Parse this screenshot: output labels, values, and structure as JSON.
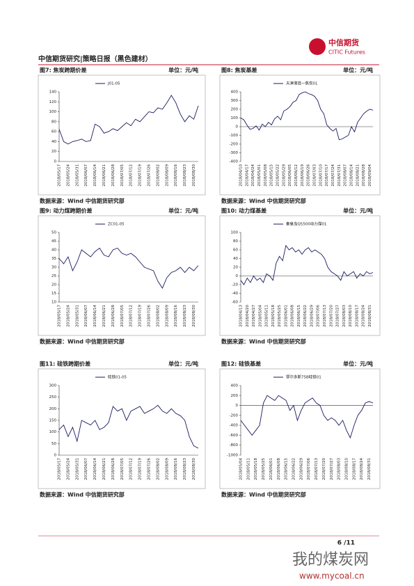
{
  "header": {
    "logo_name": "中信期货",
    "logo_en": "CITIC Futures",
    "title": "中信期货研究|策略日报（黑色建材）"
  },
  "footer": {
    "page": "6 /11",
    "watermark": "我的煤炭网",
    "watermark_url": "www.mycoal.cn"
  },
  "chart_data": [
    {
      "type": "line",
      "title": "图7: 焦炭跨期价差",
      "unit": "单位：元/吨",
      "source": "数据来源：Wind 中信期货研究部",
      "categories": [
        "2018/05/17",
        null,
        "2018/05/24",
        null,
        "2018/05/31",
        null,
        "2018/06/07",
        null,
        "2018/06/14",
        null,
        "2018/06/21",
        null,
        "2018/06/28",
        null,
        "2018/07/05",
        null,
        "2018/07/12",
        null,
        "2018/07/19",
        null,
        "2018/07/26",
        null,
        "2018/08/02",
        null,
        "2018/08/09",
        null,
        "2018/08/16",
        null,
        "2018/08/23",
        null,
        "2018/08/30",
        null
      ],
      "series": [
        {
          "name": "J01-05",
          "color": "#1a1a5e",
          "values": [
            65,
            40,
            35,
            40,
            42,
            45,
            40,
            42,
            75,
            70,
            57,
            60,
            66,
            62,
            70,
            78,
            72,
            85,
            80,
            90,
            100,
            98,
            108,
            105,
            118,
            133,
            118,
            95,
            80,
            92,
            85,
            112
          ]
        }
      ],
      "ylim": [
        0,
        140
      ],
      "yticks": [
        0,
        20,
        40,
        60,
        80,
        100,
        120,
        140
      ]
    },
    {
      "type": "line",
      "title": "图8: 焦炭基差",
      "unit": "单位：元/吨",
      "source": "数据来源：Wind 中信期货研究部",
      "categories": [
        "2018/04/10",
        null,
        "2018/04/17",
        null,
        "2018/04/24",
        null,
        "2018/05/01",
        null,
        "2018/05/08",
        null,
        "2018/05/15",
        null,
        "2018/05/22",
        null,
        "2018/05/29",
        null,
        "2018/06/05",
        null,
        "2018/06/12",
        null,
        "2018/06/19",
        null,
        "2018/06/26",
        null,
        "2018/07/03",
        null,
        "2018/07/10",
        null,
        "2018/07/17",
        null,
        "2018/07/24",
        null,
        "2018/07/31",
        null,
        "2018/08/07",
        null,
        "2018/08/14",
        null,
        "2018/08/21",
        null,
        "2018/08/28",
        null,
        "2018/09/04",
        null
      ],
      "series": [
        {
          "name": "天津港准一焦炭01",
          "color": "#1a1a5e",
          "values": [
            100,
            80,
            20,
            -30,
            -20,
            10,
            -40,
            30,
            0,
            50,
            20,
            90,
            120,
            80,
            180,
            200,
            230,
            280,
            300,
            370,
            390,
            400,
            380,
            370,
            350,
            300,
            200,
            150,
            20,
            -20,
            -50,
            -20,
            -150,
            -140,
            -120,
            -100,
            0,
            -60,
            50,
            100,
            150,
            180,
            200,
            190
          ]
        }
      ],
      "ylim": [
        -400,
        400
      ],
      "yticks": [
        -400,
        -300,
        -200,
        -100,
        0,
        100,
        200,
        300,
        400
      ]
    },
    {
      "type": "line",
      "title": "图9: 动力煤跨期价差",
      "unit": "单位：元/吨",
      "source": "数据来源：Wind 中信期货研究部",
      "categories": [
        "2018/05/17",
        null,
        "2018/05/24",
        null,
        "2018/05/31",
        null,
        "2018/06/07",
        null,
        "2018/06/14",
        null,
        "2018/06/21",
        null,
        "2018/06/28",
        null,
        "2018/07/05",
        null,
        "2018/07/12",
        null,
        "2018/07/19",
        null,
        "2018/07/26",
        null,
        "2018/08/02",
        null,
        "2018/08/09",
        null,
        "2018/08/16",
        null,
        "2018/08/23",
        null,
        "2018/08/30",
        null
      ],
      "series": [
        {
          "name": "ZC01-05",
          "color": "#1a1a5e",
          "values": [
            35,
            32,
            36,
            28,
            33,
            40,
            38,
            36,
            39,
            41,
            37,
            36,
            40,
            41,
            38,
            37,
            38,
            36,
            33,
            30,
            29,
            28,
            22,
            18,
            24,
            27,
            28,
            30,
            27,
            30,
            28,
            31
          ]
        }
      ],
      "ylim": [
        10,
        50
      ],
      "yticks": [
        10,
        15,
        20,
        25,
        30,
        35,
        40,
        45,
        50
      ]
    },
    {
      "type": "line",
      "title": "图10: 动力煤基差",
      "unit": "单位：元/吨",
      "source": "数据来源：Wind 中信期货研究部",
      "categories": [
        "2018/04/13",
        null,
        "2018/04/20",
        null,
        "2018/04/27",
        null,
        "2018/05/04",
        null,
        "2018/05/11",
        null,
        "2018/05/18",
        null,
        "2018/05/25",
        null,
        "2018/06/01",
        null,
        "2018/06/08",
        null,
        "2018/06/15",
        null,
        "2018/06/22",
        null,
        "2018/06/29",
        null,
        "2018/07/06",
        null,
        "2018/07/13",
        null,
        "2018/07/20",
        null,
        "2018/07/27",
        null,
        "2018/08/03",
        null,
        "2018/08/10",
        null,
        "2018/08/17",
        null,
        "2018/08/24",
        null,
        "2018/08/31",
        null
      ],
      "series": [
        {
          "name": "秦皇岛Q5500动力煤01",
          "color": "#1a1a5e",
          "values": [
            -10,
            -20,
            -5,
            -15,
            0,
            -10,
            -5,
            -15,
            5,
            0,
            -10,
            30,
            45,
            35,
            70,
            60,
            65,
            55,
            60,
            50,
            60,
            65,
            55,
            60,
            55,
            50,
            40,
            20,
            10,
            5,
            0,
            -10,
            10,
            0,
            5,
            10,
            -5,
            5,
            0,
            10,
            5,
            8
          ]
        }
      ],
      "ylim": [
        -60,
        100
      ],
      "yticks": [
        -60,
        -40,
        -20,
        0,
        20,
        40,
        60,
        80,
        100
      ]
    },
    {
      "type": "line",
      "title": "图11: 硅铁跨期价差",
      "unit": "单位：元/吨",
      "source": "数据来源：Wind 中信期货研究部",
      "categories": [
        "2018/05/17",
        null,
        "2018/05/24",
        null,
        "2018/05/31",
        null,
        "2018/06/07",
        null,
        "2018/06/14",
        null,
        "2018/06/21",
        null,
        "2018/06/28",
        null,
        "2018/07/05",
        null,
        "2018/07/12",
        null,
        "2018/07/19",
        null,
        "2018/07/26",
        null,
        "2018/08/02",
        null,
        "2018/08/09",
        null,
        "2018/08/16",
        null,
        "2018/08/23",
        null,
        "2018/08/30",
        null
      ],
      "series": [
        {
          "name": "硅铁01-05",
          "color": "#1a1a5e",
          "values": [
            110,
            130,
            80,
            120,
            60,
            150,
            140,
            130,
            150,
            110,
            120,
            140,
            210,
            190,
            200,
            150,
            190,
            200,
            210,
            180,
            190,
            200,
            215,
            190,
            180,
            200,
            180,
            170,
            150,
            80,
            40,
            30
          ]
        }
      ],
      "ylim": [
        0,
        300
      ],
      "yticks": [
        0,
        50,
        100,
        150,
        200,
        250,
        300
      ]
    },
    {
      "type": "line",
      "title": "图12: 硅铁基差",
      "unit": "单位：元/吨",
      "source": "数据来源：Wind 中信期货研究部",
      "categories": [
        "2018/05/04",
        null,
        "2018/05/11",
        null,
        "2018/05/18",
        null,
        "2018/05/25",
        null,
        "2018/06/01",
        null,
        "2018/06/08",
        null,
        "2018/06/15",
        null,
        "2018/06/22",
        null,
        "2018/06/29",
        null,
        "2018/07/06",
        null,
        "2018/07/13",
        null,
        "2018/07/20",
        null,
        "2018/07/27",
        null,
        "2018/08/03",
        null,
        "2018/08/10",
        null,
        "2018/08/17",
        null,
        "2018/08/24",
        null,
        "2018/08/31",
        null
      ],
      "series": [
        {
          "name": "鄂尔多斯75B硅铁01",
          "color": "#1a1a5e",
          "values": [
            -300,
            -400,
            -500,
            -600,
            -500,
            -400,
            50,
            200,
            150,
            100,
            200,
            150,
            100,
            -100,
            0,
            -300,
            -100,
            50,
            100,
            150,
            50,
            0,
            -200,
            -300,
            -250,
            -300,
            -400,
            -300,
            -500,
            -650,
            -400,
            -200,
            -100,
            50,
            80,
            50
          ]
        }
      ],
      "ylim": [
        -1000,
        400
      ],
      "yticks": [
        -1000,
        -800,
        -600,
        -400,
        -200,
        0,
        200,
        400
      ]
    }
  ]
}
